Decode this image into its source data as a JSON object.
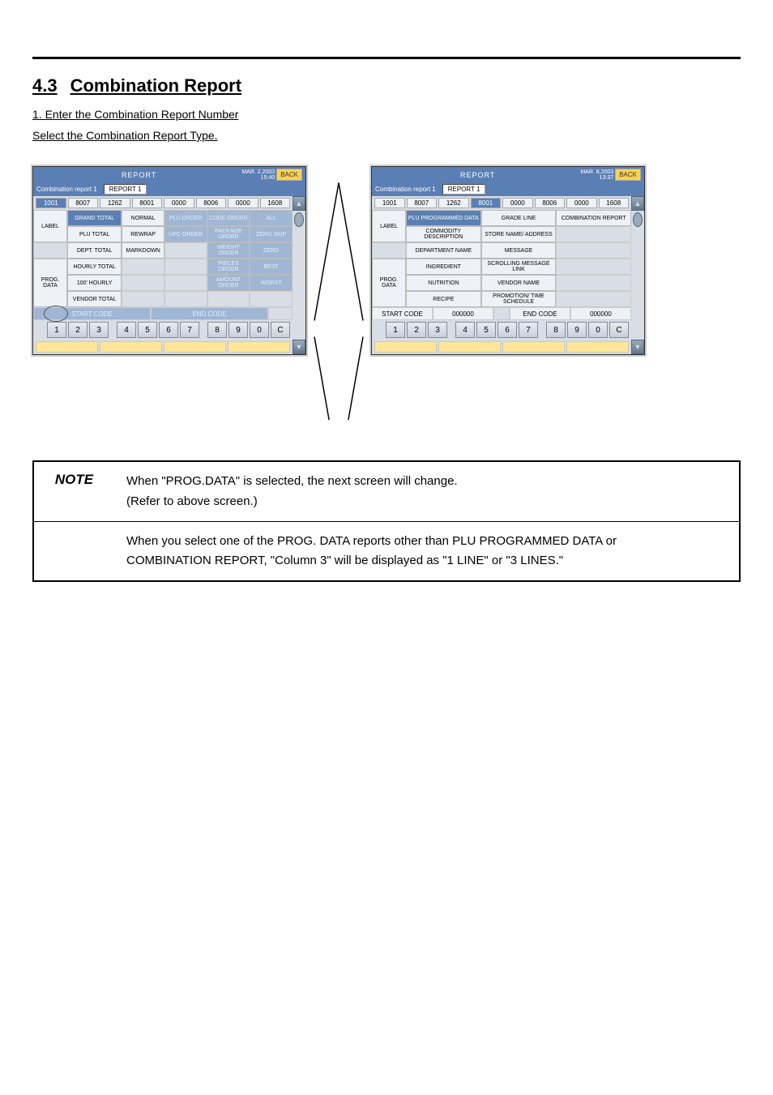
{
  "page": {
    "section_number": "4.3",
    "section_title": "Combination Report",
    "step1": "1. Enter the Combination Report Number",
    "step2": "Select the Combination Report Type."
  },
  "left": {
    "header_title": "REPORT",
    "date_line1": "MAR. 2,2003",
    "date_line2": "15:40",
    "back": "BACK",
    "sub_label": "Combination report 1",
    "sub_value": "REPORT 1",
    "num_row": [
      "1001",
      "8007",
      "1262",
      "8001",
      "0000",
      "8006",
      "0000",
      "1608"
    ],
    "side": {
      "label": "LABEL",
      "prog": "PROG.\nDATA"
    },
    "grid": [
      [
        "GRAND TOTAL",
        "NORMAL",
        "PLU ORDER",
        "CODE ORDER",
        "ALL"
      ],
      [
        "PLU TOTAL",
        "REWRAP",
        "UPC ORDER",
        "PACKAGE ORDER",
        "ZERO SKIP"
      ],
      [
        "DEPT. TOTAL",
        "MARKDOWN",
        "",
        "WEIGHT ORDER",
        "ZERO"
      ],
      [
        "HOURLY TOTAL",
        "",
        "",
        "PIECES ORDER",
        "BEST"
      ],
      [
        "100' HOURLY",
        "",
        "",
        "AMOUNT ORDER",
        "WORST"
      ],
      [
        "VENDOR TOTAL",
        "",
        "",
        "",
        ""
      ]
    ],
    "grid_colors": [
      [
        "sel",
        "white",
        "blue",
        "blue",
        "blue"
      ],
      [
        "white",
        "white",
        "blue",
        "blue",
        "blue"
      ],
      [
        "white",
        "white",
        "empty",
        "blue",
        "blue"
      ],
      [
        "white",
        "empty",
        "empty",
        "blue",
        "blue"
      ],
      [
        "white",
        "empty",
        "empty",
        "blue",
        "blue"
      ],
      [
        "white",
        "empty",
        "empty",
        "empty",
        "empty"
      ]
    ],
    "code_row": {
      "start": "START CODE",
      "end": "END CODE",
      "start_style": "blue",
      "end_style": "blue"
    },
    "keypad": [
      "1",
      "2",
      "3",
      "4",
      "5",
      "6",
      "7",
      "8",
      "9",
      "0",
      "C"
    ]
  },
  "right": {
    "header_title": "REPORT",
    "date_line1": "MAR. 8,2003",
    "date_line2": "13:37",
    "back": "BACK",
    "sub_label": "Combination report 1",
    "sub_value": "REPORT 1",
    "num_row": [
      "1001",
      "8007",
      "1262",
      "8001",
      "0000",
      "8006",
      "0000",
      "1608"
    ],
    "num_sel_index": 3,
    "side": {
      "label": "LABEL",
      "prog": "PROG.\nDATA"
    },
    "grid": [
      [
        "PLU PROGRAMMED DATA",
        "GRADE LINE",
        "COMBINATION REPORT"
      ],
      [
        "COMMODITY DESCRIPTION",
        "STORE NAME/ ADDRESS",
        ""
      ],
      [
        "DEPARTMENT NAME",
        "MESSAGE",
        ""
      ],
      [
        "INGREDIENT",
        "SCROLLING MESSAGE LINK",
        ""
      ],
      [
        "NUTRITION",
        "VENDOR NAME",
        ""
      ],
      [
        "RECIPE",
        "PROMOTION/ TIME SCHEDULE",
        ""
      ]
    ],
    "grid_colors": [
      [
        "sel",
        "white",
        "white"
      ],
      [
        "white",
        "white",
        "empty"
      ],
      [
        "white",
        "white",
        "empty"
      ],
      [
        "white",
        "white",
        "empty"
      ],
      [
        "white",
        "white",
        "empty"
      ],
      [
        "white",
        "white",
        "empty"
      ]
    ],
    "code_row": {
      "start": "START CODE",
      "start_val": "000000",
      "end": "END CODE",
      "end_val": "000000"
    },
    "keypad": [
      "1",
      "2",
      "3",
      "4",
      "5",
      "6",
      "7",
      "8",
      "9",
      "0",
      "C"
    ]
  },
  "note": {
    "label": "NOTE",
    "lines": [
      "When \"PROG.DATA\" is selected, the next screen will change.",
      "(Refer to above screen.)",
      "When you select one of the PROG. DATA reports other than PLU PROGRAMMED DATA or",
      "COMBINATION REPORT, \"Column 3\" will be displayed as \"1 LINE\" or \"3 LINES.\""
    ]
  },
  "colors": {
    "header_blue": "#5a7fb5",
    "pale_blue": "#9fb6d4",
    "panel_bg": "#d8dde6",
    "cell_bg": "#eef1f6",
    "yellow": "#ffd24d",
    "fn_yellow": "#ffe69a"
  }
}
